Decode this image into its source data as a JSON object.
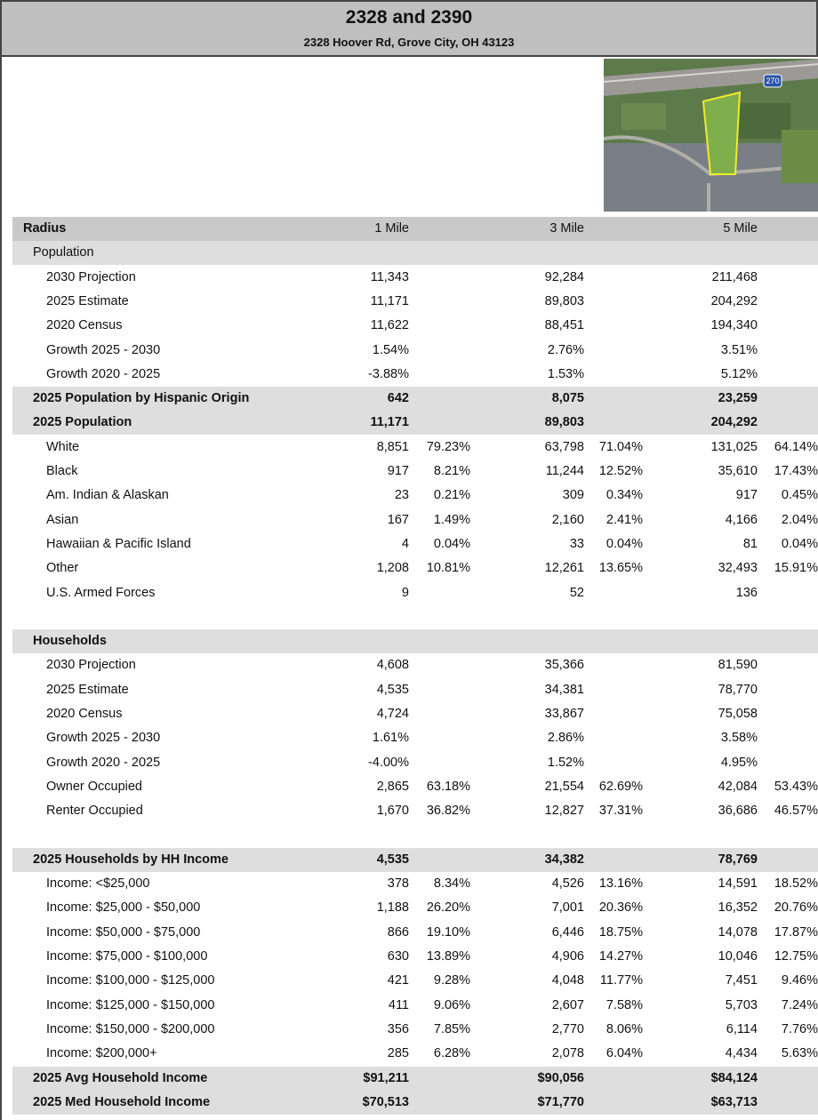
{
  "header": {
    "title": "2328 and 2390",
    "subtitle": "2328 Hoover Rd, Grove City, OH 43123"
  },
  "map": {
    "shield": "270"
  },
  "table": {
    "rows": [
      {
        "style": "header",
        "label": "Radius",
        "cells": [
          [
            "1 Mile"
          ],
          [
            "3 Mile"
          ],
          [
            "5 Mile"
          ]
        ]
      },
      {
        "style": "group",
        "label": "Population"
      },
      {
        "style": "item",
        "label": "2030 Projection",
        "cells": [
          [
            "11,343"
          ],
          [
            "92,284"
          ],
          [
            "211,468"
          ]
        ]
      },
      {
        "style": "item",
        "label": "2025 Estimate",
        "cells": [
          [
            "11,171"
          ],
          [
            "89,803"
          ],
          [
            "204,292"
          ]
        ]
      },
      {
        "style": "item",
        "label": "2020 Census",
        "cells": [
          [
            "11,622"
          ],
          [
            "88,451"
          ],
          [
            "194,340"
          ]
        ]
      },
      {
        "style": "item",
        "label": "Growth 2025 - 2030",
        "cells": [
          [
            "1.54%"
          ],
          [
            "2.76%"
          ],
          [
            "3.51%"
          ]
        ]
      },
      {
        "style": "item",
        "label": "Growth 2020 - 2025",
        "cells": [
          [
            "-3.88%"
          ],
          [
            "1.53%"
          ],
          [
            "5.12%"
          ]
        ]
      },
      {
        "style": "total",
        "label": "2025 Population by Hispanic Origin",
        "cells": [
          [
            "642"
          ],
          [
            "8,075"
          ],
          [
            "23,259"
          ]
        ]
      },
      {
        "style": "total",
        "label": "2025 Population",
        "cells": [
          [
            "11,171"
          ],
          [
            "89,803"
          ],
          [
            "204,292"
          ]
        ]
      },
      {
        "style": "item",
        "label": "White",
        "cells": [
          [
            "8,851",
            "79.23%"
          ],
          [
            "63,798",
            "71.04%"
          ],
          [
            "131,025",
            "64.14%"
          ]
        ]
      },
      {
        "style": "item",
        "label": "Black",
        "cells": [
          [
            "917",
            "8.21%"
          ],
          [
            "11,244",
            "12.52%"
          ],
          [
            "35,610",
            "17.43%"
          ]
        ]
      },
      {
        "style": "item",
        "label": "Am. Indian & Alaskan",
        "cells": [
          [
            "23",
            "0.21%"
          ],
          [
            "309",
            "0.34%"
          ],
          [
            "917",
            "0.45%"
          ]
        ]
      },
      {
        "style": "item",
        "label": "Asian",
        "cells": [
          [
            "167",
            "1.49%"
          ],
          [
            "2,160",
            "2.41%"
          ],
          [
            "4,166",
            "2.04%"
          ]
        ]
      },
      {
        "style": "item",
        "label": "Hawaiian & Pacific Island",
        "cells": [
          [
            "4",
            "0.04%"
          ],
          [
            "33",
            "0.04%"
          ],
          [
            "81",
            "0.04%"
          ]
        ]
      },
      {
        "style": "item",
        "label": "Other",
        "cells": [
          [
            "1,208",
            "10.81%"
          ],
          [
            "12,261",
            "13.65%"
          ],
          [
            "32,493",
            "15.91%"
          ]
        ]
      },
      {
        "style": "item",
        "label": "U.S. Armed Forces",
        "cells": [
          [
            "9"
          ],
          [
            "52"
          ],
          [
            "136"
          ]
        ]
      },
      {
        "style": "spacer"
      },
      {
        "style": "total",
        "label": "Households"
      },
      {
        "style": "item",
        "label": "2030 Projection",
        "cells": [
          [
            "4,608"
          ],
          [
            "35,366"
          ],
          [
            "81,590"
          ]
        ]
      },
      {
        "style": "item",
        "label": "2025 Estimate",
        "cells": [
          [
            "4,535"
          ],
          [
            "34,381"
          ],
          [
            "78,770"
          ]
        ]
      },
      {
        "style": "item",
        "label": "2020 Census",
        "cells": [
          [
            "4,724"
          ],
          [
            "33,867"
          ],
          [
            "75,058"
          ]
        ]
      },
      {
        "style": "item",
        "label": "Growth 2025 - 2030",
        "cells": [
          [
            "1.61%"
          ],
          [
            "2.86%"
          ],
          [
            "3.58%"
          ]
        ]
      },
      {
        "style": "item",
        "label": "Growth 2020 - 2025",
        "cells": [
          [
            "-4.00%"
          ],
          [
            "1.52%"
          ],
          [
            "4.95%"
          ]
        ]
      },
      {
        "style": "item",
        "label": "Owner Occupied",
        "cells": [
          [
            "2,865",
            "63.18%"
          ],
          [
            "21,554",
            "62.69%"
          ],
          [
            "42,084",
            "53.43%"
          ]
        ]
      },
      {
        "style": "item",
        "label": "Renter Occupied",
        "cells": [
          [
            "1,670",
            "36.82%"
          ],
          [
            "12,827",
            "37.31%"
          ],
          [
            "36,686",
            "46.57%"
          ]
        ]
      },
      {
        "style": "spacer"
      },
      {
        "style": "total",
        "label": "2025 Households by HH Income",
        "cells": [
          [
            "4,535"
          ],
          [
            "34,382"
          ],
          [
            "78,769"
          ]
        ]
      },
      {
        "style": "item",
        "label": "Income: <$25,000",
        "cells": [
          [
            "378",
            "8.34%"
          ],
          [
            "4,526",
            "13.16%"
          ],
          [
            "14,591",
            "18.52%"
          ]
        ]
      },
      {
        "style": "item",
        "label": "Income: $25,000 - $50,000",
        "cells": [
          [
            "1,188",
            "26.20%"
          ],
          [
            "7,001",
            "20.36%"
          ],
          [
            "16,352",
            "20.76%"
          ]
        ]
      },
      {
        "style": "item",
        "label": "Income: $50,000 - $75,000",
        "cells": [
          [
            "866",
            "19.10%"
          ],
          [
            "6,446",
            "18.75%"
          ],
          [
            "14,078",
            "17.87%"
          ]
        ]
      },
      {
        "style": "item",
        "label": "Income: $75,000 - $100,000",
        "cells": [
          [
            "630",
            "13.89%"
          ],
          [
            "4,906",
            "14.27%"
          ],
          [
            "10,046",
            "12.75%"
          ]
        ]
      },
      {
        "style": "item",
        "label": "Income: $100,000 - $125,000",
        "cells": [
          [
            "421",
            "9.28%"
          ],
          [
            "4,048",
            "11.77%"
          ],
          [
            "7,451",
            "9.46%"
          ]
        ]
      },
      {
        "style": "item",
        "label": "Income: $125,000 - $150,000",
        "cells": [
          [
            "411",
            "9.06%"
          ],
          [
            "2,607",
            "7.58%"
          ],
          [
            "5,703",
            "7.24%"
          ]
        ]
      },
      {
        "style": "item",
        "label": "Income: $150,000 - $200,000",
        "cells": [
          [
            "356",
            "7.85%"
          ],
          [
            "2,770",
            "8.06%"
          ],
          [
            "6,114",
            "7.76%"
          ]
        ]
      },
      {
        "style": "item",
        "label": "Income: $200,000+",
        "cells": [
          [
            "285",
            "6.28%"
          ],
          [
            "2,078",
            "6.04%"
          ],
          [
            "4,434",
            "5.63%"
          ]
        ]
      },
      {
        "style": "total",
        "label": "2025 Avg Household Income",
        "cells": [
          [
            "$91,211"
          ],
          [
            "$90,056"
          ],
          [
            "$84,124"
          ]
        ]
      },
      {
        "style": "total",
        "label": "2025 Med Household Income",
        "cells": [
          [
            "$70,513"
          ],
          [
            "$71,770"
          ],
          [
            "$63,713"
          ]
        ]
      }
    ]
  }
}
